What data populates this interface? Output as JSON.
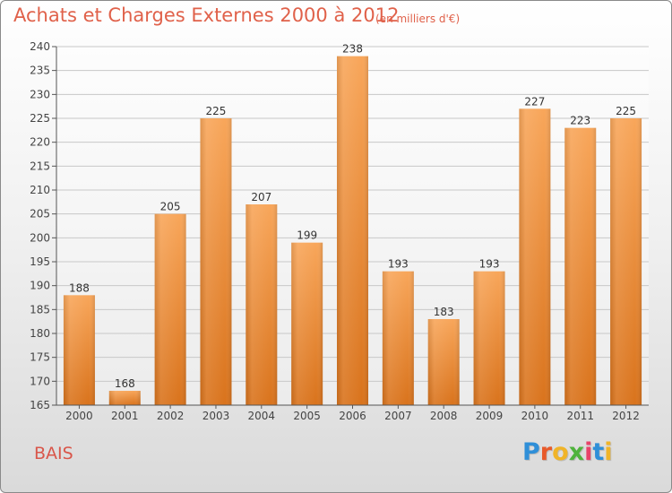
{
  "header": {
    "title": "Achats et Charges Externes 2000 à 2012",
    "subtitle": "(en milliers d'€)"
  },
  "footer": {
    "city": "BAIS",
    "brand_letters": [
      "P",
      "r",
      "o",
      "x",
      "i",
      "t",
      "i"
    ],
    "brand_colors": [
      "#2f8fd8",
      "#e85a2a",
      "#f0b428",
      "#4fb33c",
      "#e8436a",
      "#2f8fd8",
      "#f0b428"
    ]
  },
  "colors": {
    "title": "#e0614a",
    "bar_top": "#f8a65a",
    "bar_bottom": "#d9731c",
    "grid": "#c8c8c8",
    "axis": "#555555"
  },
  "chart_data": {
    "type": "bar",
    "categories": [
      "2000",
      "2001",
      "2002",
      "2003",
      "2004",
      "2005",
      "2006",
      "2007",
      "2008",
      "2009",
      "2010",
      "2011",
      "2012"
    ],
    "values": [
      188,
      168,
      205,
      225,
      207,
      199,
      238,
      193,
      183,
      193,
      227,
      223,
      225
    ],
    "data_labels": [
      "188",
      "168",
      "205",
      "225",
      "207",
      "199",
      "238",
      "193",
      "183",
      "193",
      "227",
      "223",
      "225"
    ],
    "title": "Achats et Charges Externes 2000 à 2012",
    "subtitle": "(en milliers d'€)",
    "xlabel": "",
    "ylabel": "",
    "ylim": [
      165,
      240
    ],
    "yticks": [
      165,
      170,
      175,
      180,
      185,
      190,
      195,
      200,
      205,
      210,
      215,
      220,
      225,
      230,
      235,
      240
    ],
    "grid": true
  }
}
